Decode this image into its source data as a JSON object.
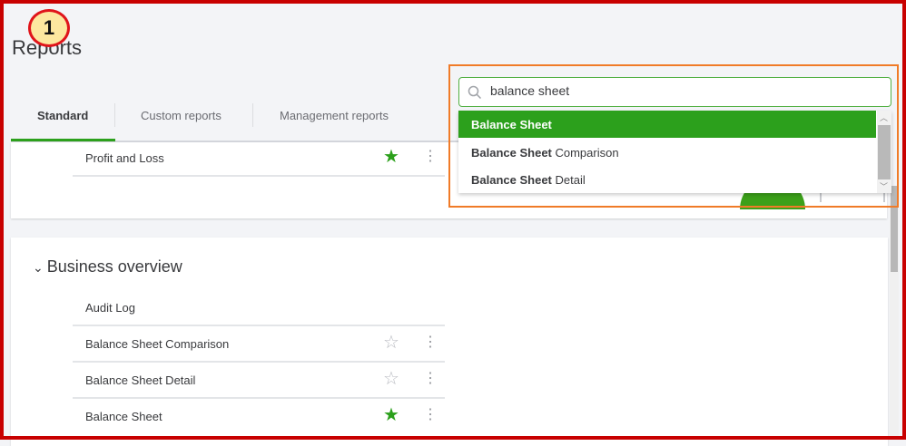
{
  "annotation": {
    "step_number": "1"
  },
  "page": {
    "title": "Reports"
  },
  "tabs": [
    {
      "label": "Standard",
      "active": true
    },
    {
      "label": "Custom reports",
      "active": false
    },
    {
      "label": "Management reports",
      "active": false
    }
  ],
  "favorites": {
    "items": [
      {
        "label": "Profit and Loss",
        "favorited": true
      }
    ]
  },
  "business_overview": {
    "heading": "Business overview",
    "items": [
      {
        "label": "Audit Log"
      },
      {
        "label": "Balance Sheet Comparison",
        "favorited": false
      },
      {
        "label": "Balance Sheet Detail",
        "favorited": false
      },
      {
        "label": "Balance Sheet",
        "favorited": true
      }
    ]
  },
  "search": {
    "value": "balance sheet",
    "results": [
      {
        "match": "Balance Sheet",
        "rest": ""
      },
      {
        "match": "Balance Sheet",
        "rest": " Comparison"
      },
      {
        "match": "Balance Sheet",
        "rest": " Detail"
      }
    ]
  },
  "colors": {
    "accent": "#2ca01c",
    "highlight_box": "#f07b28",
    "frame": "#c80000",
    "star_empty": "#b8bac0"
  }
}
